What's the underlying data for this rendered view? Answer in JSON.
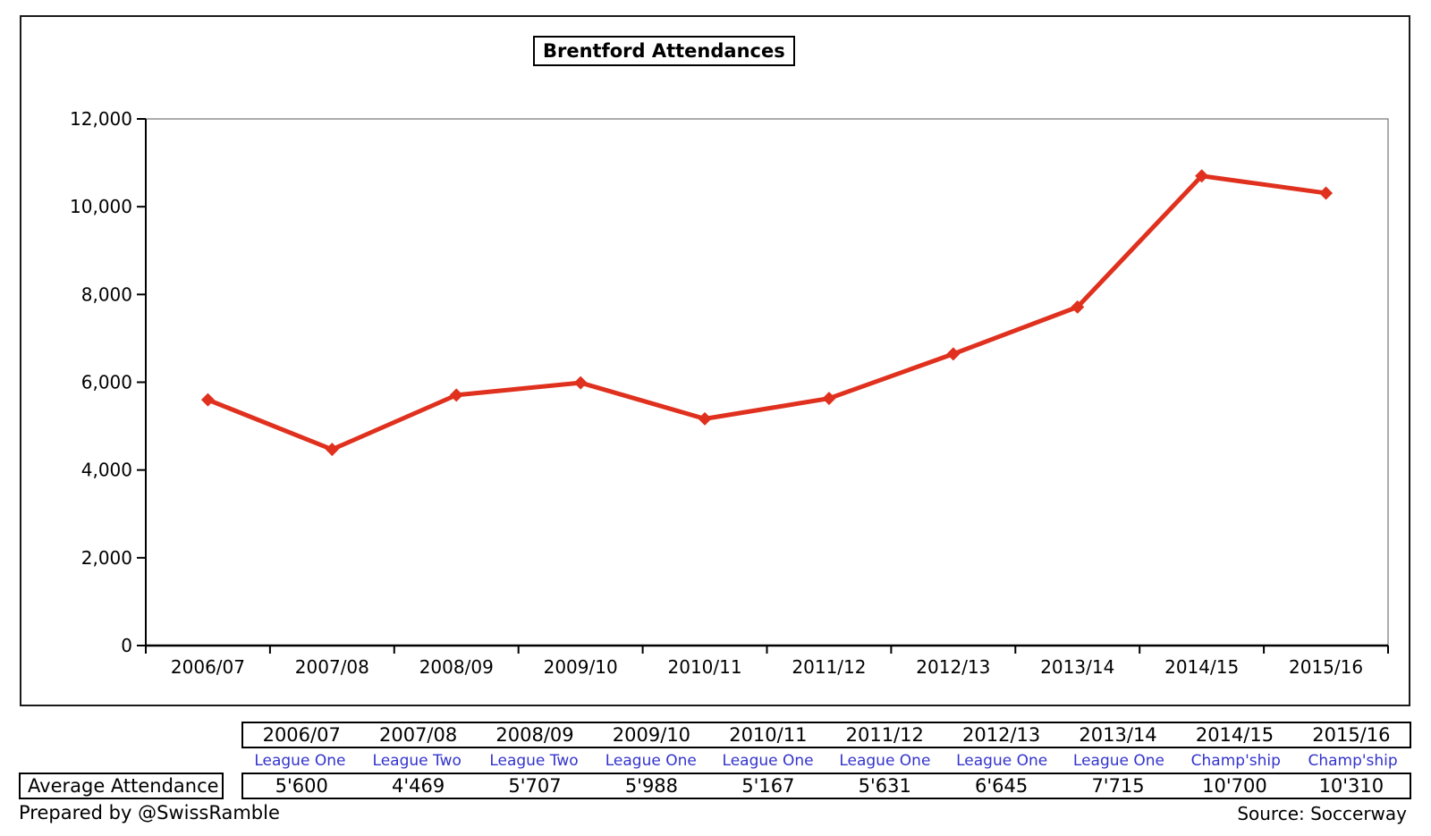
{
  "chart_data": {
    "type": "line",
    "title": "Brentford Attendances",
    "categories": [
      "2006/07",
      "2007/08",
      "2008/09",
      "2009/10",
      "2010/11",
      "2011/12",
      "2012/13",
      "2013/14",
      "2014/15",
      "2015/16"
    ],
    "series": [
      {
        "name": "Average Attendance",
        "values": [
          5600,
          4469,
          5707,
          5988,
          5167,
          5631,
          6645,
          7715,
          10700,
          10310
        ]
      }
    ],
    "ylim": [
      0,
      12000
    ],
    "ytick_step": 2000,
    "ytick_labels": [
      "0",
      "2,000",
      "4,000",
      "6,000",
      "8,000",
      "10,000",
      "12,000"
    ],
    "xlabel": "",
    "ylabel": "",
    "grid": false,
    "legend": "none",
    "marker": "diamond",
    "line_color": "#E0301E"
  },
  "table": {
    "seasons": [
      "2006/07",
      "2007/08",
      "2008/09",
      "2009/10",
      "2010/11",
      "2011/12",
      "2012/13",
      "2013/14",
      "2014/15",
      "2015/16"
    ],
    "leagues": [
      "League One",
      "League Two",
      "League Two",
      "League One",
      "League One",
      "League One",
      "League One",
      "League One",
      "Champ'ship",
      "Champ'ship"
    ],
    "row_label": "Average Attendance",
    "values": [
      "5'600",
      "4'469",
      "5'707",
      "5'988",
      "5'167",
      "5'631",
      "6'645",
      "7'715",
      "10'700",
      "10'310"
    ]
  },
  "footer": {
    "prepared_by": "Prepared by @SwissRamble",
    "source": "Source: Soccerway"
  },
  "colors": {
    "line": "#E0301E",
    "league_text": "#3333CC",
    "axis": "#000000",
    "plot_border": "#808080"
  }
}
